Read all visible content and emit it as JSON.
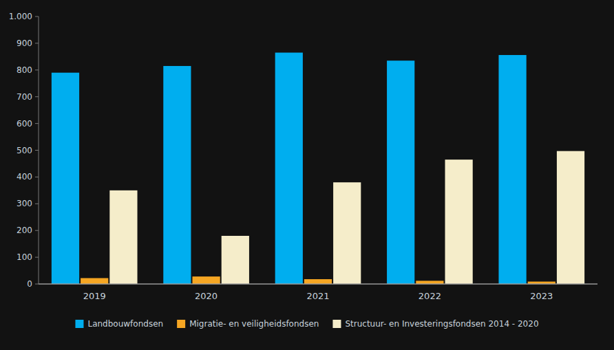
{
  "chart_data": {
    "type": "bar",
    "categories": [
      "2019",
      "2020",
      "2021",
      "2022",
      "2023"
    ],
    "series": [
      {
        "name": "Landbouwfondsen",
        "color": "#00AEEF",
        "values": [
          790,
          815,
          865,
          835,
          856
        ]
      },
      {
        "name": "Migratie- en veiligheidsfondsen",
        "color": "#F5A623",
        "values": [
          22,
          28,
          18,
          12,
          9
        ]
      },
      {
        "name": "Structuur- en Investeringsfondsen 2014 - 2020",
        "color": "#F5EDCA",
        "values": [
          350,
          180,
          380,
          465,
          497
        ]
      }
    ],
    "ylim": [
      0,
      1000
    ],
    "yticks": [
      0,
      100,
      200,
      300,
      400,
      500,
      600,
      700,
      800,
      900,
      {
        "value": 1000,
        "label": "1.000"
      }
    ],
    "grid": false,
    "legend": "bottom"
  }
}
